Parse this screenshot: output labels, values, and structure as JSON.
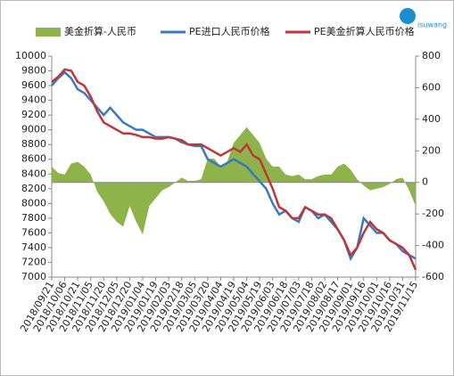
{
  "chart_data": {
    "type": "line",
    "logo": "isuwang",
    "categories": [
      "2018/09/21",
      null,
      "2018/10/06",
      null,
      "2018/10/21",
      null,
      "2018/11/05",
      null,
      "2018/11/20",
      null,
      "2018/12/05",
      null,
      "2018/12/20",
      null,
      "2019/01/04",
      null,
      "2019/01/19",
      null,
      "2019/02/03",
      null,
      "2019/02/18",
      null,
      "2019/03/05",
      null,
      "2019/03/20",
      null,
      "2019/04/04",
      null,
      "2019/04/19",
      null,
      "2019/05/04",
      null,
      "2019/05/19",
      null,
      "2019/06/03",
      null,
      "2019/06/18",
      null,
      "2019/07/03",
      null,
      "2019/07/18",
      null,
      "2019/08/02",
      null,
      "2019/08/17",
      null,
      "2019/09/01",
      null,
      "2019/09/16",
      null,
      "2019/10/01",
      null,
      "2019/10/16",
      null,
      "2019/10/31",
      null,
      "2019/11/15"
    ],
    "series": [
      {
        "name": "美金折算-人民币",
        "type": "area",
        "axis": "y2",
        "color": "#8db34a",
        "values": [
          100,
          60,
          50,
          120,
          130,
          100,
          50,
          -60,
          -120,
          -200,
          -250,
          -280,
          -150,
          -250,
          -330,
          -150,
          -100,
          -50,
          -30,
          0,
          30,
          10,
          10,
          20,
          150,
          150,
          100,
          130,
          250,
          300,
          350,
          300,
          250,
          150,
          100,
          100,
          50,
          40,
          50,
          20,
          20,
          40,
          50,
          50,
          100,
          120,
          80,
          20,
          -20,
          -50,
          -40,
          -30,
          -10,
          20,
          30,
          -50,
          -150
        ]
      },
      {
        "name": "PE进口人民币价格",
        "type": "line",
        "axis": "y",
        "color": "#3a78c2",
        "values": [
          9600,
          9700,
          9780,
          9700,
          9550,
          9500,
          9400,
          9300,
          9200,
          9300,
          9200,
          9100,
          9050,
          9000,
          9000,
          8950,
          8900,
          8900,
          8900,
          8880,
          8830,
          8800,
          8780,
          8780,
          8600,
          8550,
          8500,
          8550,
          8600,
          8550,
          8500,
          8400,
          8300,
          8200,
          8000,
          7850,
          7900,
          7800,
          7750,
          7950,
          7900,
          7800,
          7850,
          7750,
          7650,
          7500,
          7250,
          7400,
          7800,
          7700,
          7600,
          7600,
          7500,
          7450,
          7350,
          7300,
          7250
        ]
      },
      {
        "name": "PE美金折算人民币价格",
        "type": "line",
        "axis": "y",
        "color": "#c0363a",
        "values": [
          9650,
          9720,
          9820,
          9800,
          9650,
          9600,
          9450,
          9250,
          9100,
          9050,
          9000,
          8950,
          8950,
          8930,
          8900,
          8900,
          8880,
          8880,
          8900,
          8880,
          8860,
          8800,
          8800,
          8800,
          8750,
          8700,
          8650,
          8700,
          8750,
          8700,
          8800,
          8650,
          8600,
          8400,
          8200,
          7950,
          7900,
          7800,
          7800,
          7950,
          7900,
          7850,
          7850,
          7800,
          7650,
          7500,
          7300,
          7400,
          7600,
          7750,
          7650,
          7600,
          7500,
          7450,
          7400,
          7300,
          7100
        ]
      }
    ],
    "ylim": [
      7000,
      10000
    ],
    "yticks": [
      7000,
      7200,
      7400,
      7600,
      7800,
      8000,
      8200,
      8400,
      8600,
      8800,
      9000,
      9200,
      9400,
      9600,
      9800,
      10000
    ],
    "y2lim": [
      -600,
      800
    ],
    "y2ticks": [
      -600,
      -400,
      -200,
      0,
      200,
      400,
      600,
      800
    ]
  }
}
